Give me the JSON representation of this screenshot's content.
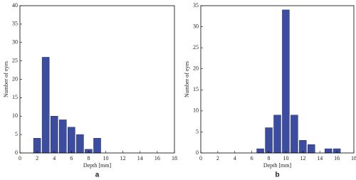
{
  "chart_data": [
    {
      "type": "histogram",
      "caption": "a",
      "xlabel": "Depth [mm]",
      "ylabel": "Number of eyes",
      "color": "#3c4c9f",
      "bins": [
        1.5,
        2.5,
        3.5,
        4.5,
        5.5,
        6.5,
        7.5,
        8.5,
        9.5
      ],
      "values": [
        4,
        26,
        10,
        9,
        7,
        5,
        1,
        4
      ],
      "xlim": [
        0,
        18
      ],
      "xticks": [
        0,
        2,
        4,
        6,
        8,
        10,
        12,
        14,
        16,
        18
      ],
      "ylim": [
        0,
        40
      ],
      "yticks": [
        0,
        5,
        10,
        15,
        20,
        25,
        30,
        35,
        40
      ]
    },
    {
      "type": "histogram",
      "caption": "b",
      "xlabel": "Depth [mm]",
      "ylabel": "Number of eyes",
      "color": "#3c4c9f",
      "bins": [
        6.5,
        7.5,
        8.5,
        9.5,
        10.5,
        11.5,
        12.5,
        13.5,
        14.5,
        15.5,
        16.5
      ],
      "values": [
        1,
        6,
        9,
        34,
        9,
        3,
        2,
        0,
        1,
        1
      ],
      "xlim": [
        0,
        18
      ],
      "xticks": [
        0,
        2,
        4,
        6,
        8,
        10,
        12,
        14,
        16,
        18
      ],
      "ylim": [
        0,
        35
      ],
      "yticks": [
        0,
        5,
        10,
        15,
        20,
        25,
        30,
        35
      ]
    }
  ]
}
